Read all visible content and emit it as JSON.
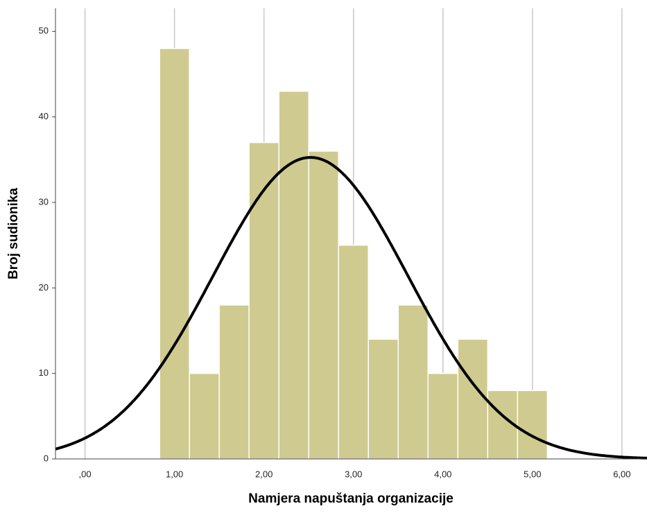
{
  "chart_data": {
    "type": "histogram",
    "x_label": "Namjera napuštanja organizacije",
    "y_label": "Broj sudionika",
    "bins": [
      0.8333,
      1.1667,
      1.5,
      1.8333,
      2.1667,
      2.5,
      2.8333,
      3.1667,
      3.5,
      3.8333,
      4.1667,
      4.5,
      4.8333,
      5.1667
    ],
    "values": [
      48,
      10,
      18,
      37,
      43,
      36,
      25,
      14,
      18,
      10,
      14,
      8,
      8
    ],
    "color": "#cfca8f",
    "curve": {
      "mean": 2.52,
      "sd": 1.09,
      "color": "#000000"
    },
    "xlim": [
      -0.33,
      6.28
    ],
    "xticks": [
      {
        "value": 0,
        "label": ",00"
      },
      {
        "value": 1,
        "label": "1,00"
      },
      {
        "value": 2,
        "label": "2,00"
      },
      {
        "value": 3,
        "label": "3,00"
      },
      {
        "value": 4,
        "label": "4,00"
      },
      {
        "value": 5,
        "label": "5,00"
      },
      {
        "value": 6,
        "label": "6,00"
      }
    ],
    "ylim": [
      0,
      52.7
    ],
    "yticks": [
      0,
      10,
      20,
      30,
      40,
      50
    ],
    "grid": true
  }
}
